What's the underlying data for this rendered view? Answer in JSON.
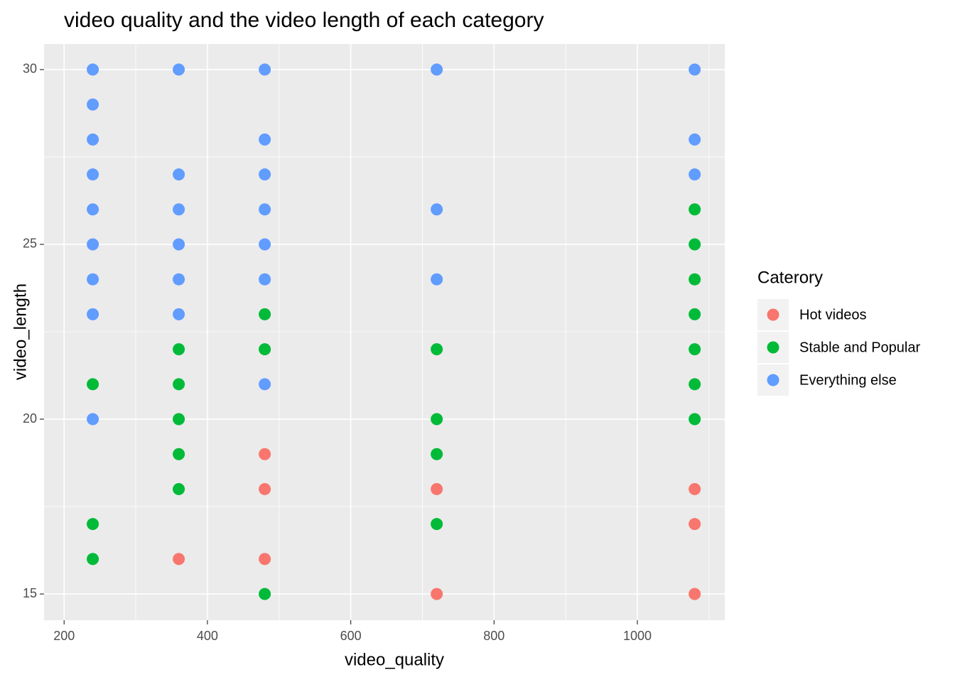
{
  "chart_data": {
    "type": "scatter",
    "title": "video quality and the video length of each category",
    "x_label": "video_quality",
    "y_label": "video_length",
    "legend_title": "Caterory",
    "legend_position": "right",
    "xlim": [
      172,
      1122
    ],
    "ylim": [
      14.25,
      30.73
    ],
    "xticks": [
      200,
      400,
      600,
      800,
      1000
    ],
    "yticks": [
      15,
      20,
      25,
      30
    ],
    "x_minor_ticks": [
      300,
      500,
      700,
      900,
      1100
    ],
    "y_minor_ticks": [
      17.5,
      22.5,
      27.5
    ],
    "grid": true,
    "series": [
      {
        "name": "Hot videos",
        "color": "#F8766D",
        "x": [
          360,
          480,
          480,
          480,
          720,
          720,
          1080,
          1080,
          1080
        ],
        "y": [
          16,
          19,
          18,
          16,
          18,
          15,
          18,
          17,
          15
        ]
      },
      {
        "name": "Stable and Popular",
        "color": "#00BA38",
        "x": [
          240,
          240,
          240,
          360,
          360,
          360,
          360,
          360,
          480,
          480,
          480,
          720,
          720,
          720,
          720,
          1080,
          1080,
          1080,
          1080,
          1080,
          1080,
          1080
        ],
        "y": [
          21,
          17,
          16,
          22,
          21,
          20,
          19,
          18,
          23,
          22,
          15,
          22,
          20,
          19,
          17,
          26,
          25,
          24,
          23,
          22,
          21,
          20
        ]
      },
      {
        "name": "Everything else",
        "color": "#619CFF",
        "x": [
          240,
          240,
          240,
          240,
          240,
          240,
          240,
          240,
          240,
          360,
          360,
          360,
          360,
          360,
          360,
          480,
          480,
          480,
          480,
          480,
          480,
          480,
          720,
          720,
          720,
          1080,
          1080,
          1080
        ],
        "y": [
          30,
          29,
          28,
          27,
          26,
          25,
          24,
          23,
          20,
          30,
          27,
          26,
          25,
          24,
          23,
          30,
          28,
          27,
          26,
          25,
          24,
          21,
          30,
          26,
          24,
          30,
          28,
          27
        ]
      }
    ]
  }
}
